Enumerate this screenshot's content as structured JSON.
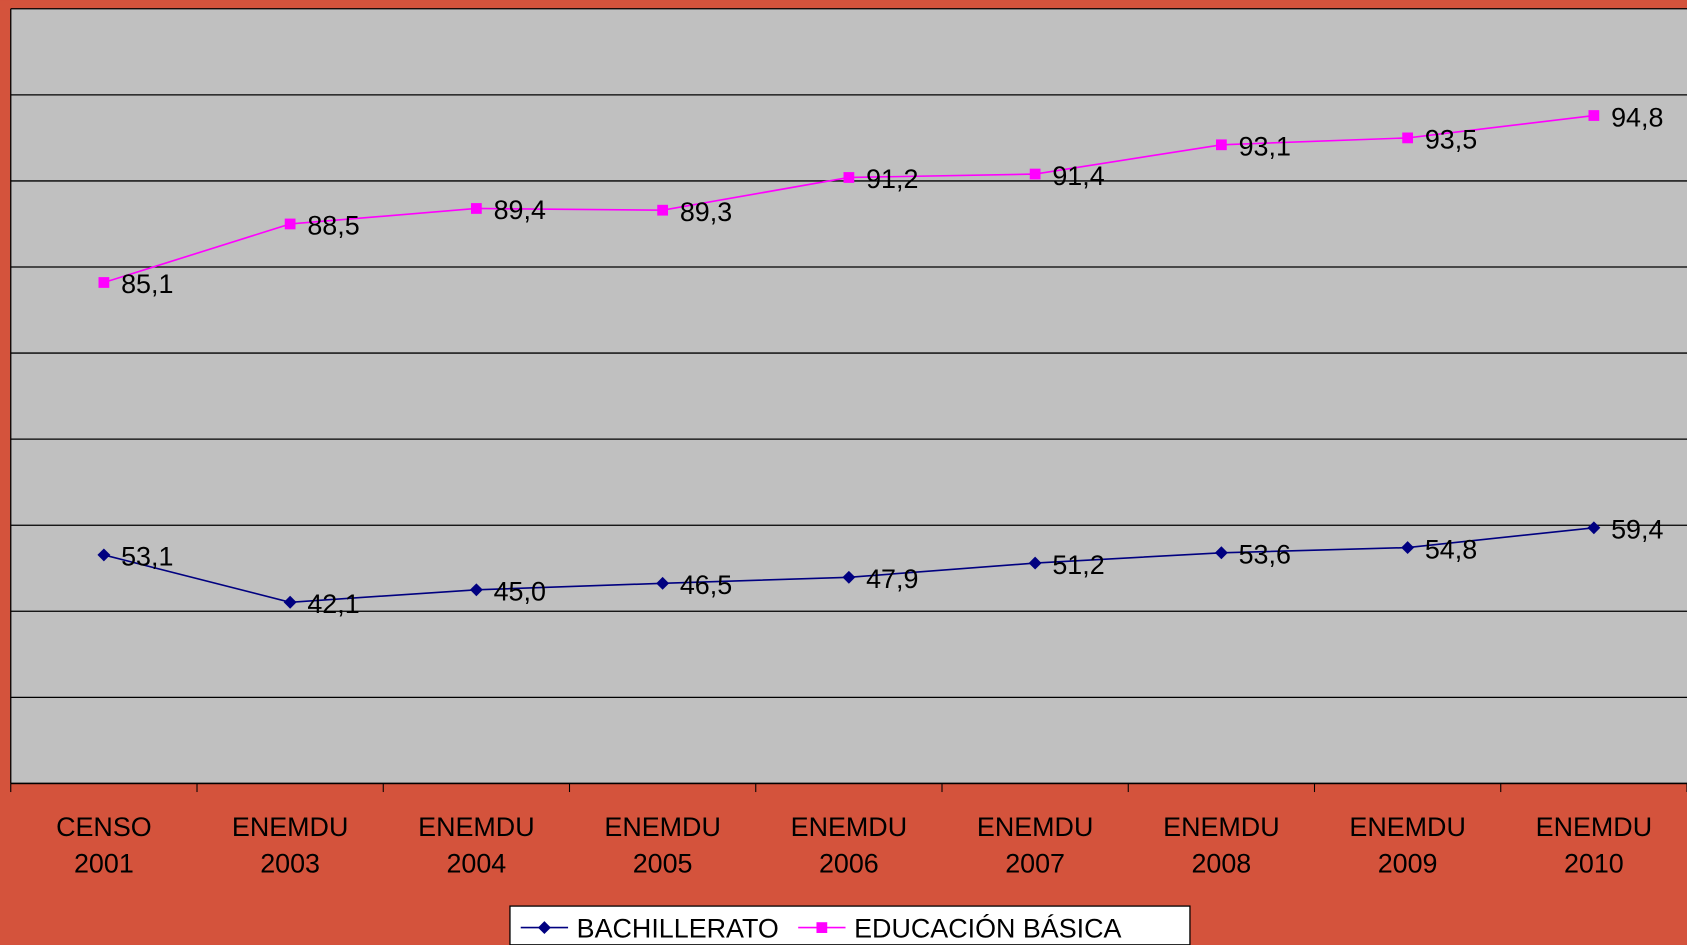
{
  "chart_data": {
    "type": "line",
    "categories": [
      [
        "CENSO",
        "2001"
      ],
      [
        "ENEMDU",
        "2003"
      ],
      [
        "ENEMDU",
        "2004"
      ],
      [
        "ENEMDU",
        "2005"
      ],
      [
        "ENEMDU",
        "2006"
      ],
      [
        "ENEMDU",
        "2007"
      ],
      [
        "ENEMDU",
        "2008"
      ],
      [
        "ENEMDU",
        "2009"
      ],
      [
        "ENEMDU",
        "2010"
      ]
    ],
    "series": [
      {
        "name": "BACHILLERATO",
        "color": "#000080",
        "marker": "diamond",
        "values": [
          53.1,
          42.1,
          45.0,
          46.5,
          47.9,
          51.2,
          53.6,
          54.8,
          59.4
        ],
        "value_labels": [
          "53,1",
          "42,1",
          "45,0",
          "46,5",
          "47,9",
          "51,2",
          "53,6",
          "54,8",
          "59,4"
        ]
      },
      {
        "name": "EDUCACIÓN BÁSICA",
        "color": "#FF00FF",
        "marker": "square",
        "axis": "y2",
        "values": [
          85.1,
          88.5,
          89.4,
          89.3,
          91.2,
          91.4,
          93.1,
          93.5,
          94.8
        ],
        "value_labels": [
          "85,1",
          "88,5",
          "89,4",
          "89,3",
          "91,2",
          "91,4",
          "93,1",
          "93,5",
          "94,8"
        ]
      }
    ],
    "ylim": [
      0,
      180
    ],
    "yticks": [
      0,
      20,
      40,
      60,
      80,
      100,
      120,
      140,
      160,
      180
    ],
    "y2lim": [
      56,
      101
    ],
    "grid": true,
    "legend": "bottom"
  }
}
